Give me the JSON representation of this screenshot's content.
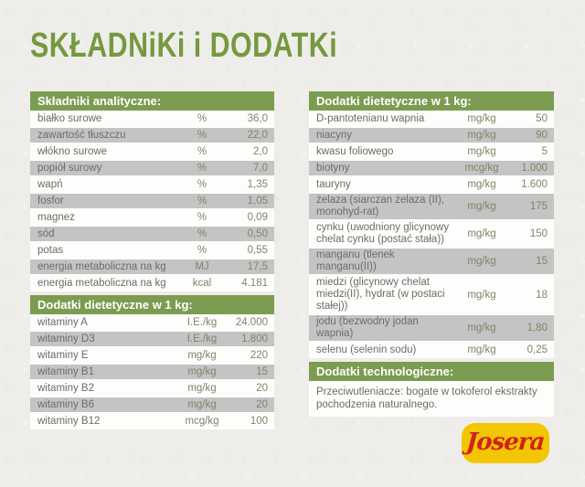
{
  "title": "SKŁADNiKi i DODATKi",
  "colors": {
    "background": "#efedea",
    "title_green": "#75993f",
    "header_green": "#7b9c51",
    "row_alt_gray": "#c4c4c4",
    "text_gray": "#6c6c66",
    "value_green_gray": "#7c8767",
    "logo_yellow": "#f4c503",
    "logo_red": "#d0231c"
  },
  "left_column": {
    "analytical": {
      "header": "Składniki analityczne:",
      "rows": [
        {
          "label": "białko surowe",
          "unit": "%",
          "value": "36,0"
        },
        {
          "label": "zawartość tłuszczu",
          "unit": "%",
          "value": "22,0"
        },
        {
          "label": "włókno surowe",
          "unit": "%",
          "value": "2,0"
        },
        {
          "label": "popiół surowy",
          "unit": "%",
          "value": "7,0"
        },
        {
          "label": "wapń",
          "unit": "%",
          "value": "1,35"
        },
        {
          "label": "fosfor",
          "unit": "%",
          "value": "1,05"
        },
        {
          "label": "magnez",
          "unit": "%",
          "value": "0,09"
        },
        {
          "label": "sód",
          "unit": "%",
          "value": "0,50"
        },
        {
          "label": "potas",
          "unit": "%",
          "value": "0,55"
        },
        {
          "label": "energia metaboliczna na kg",
          "unit": "MJ",
          "value": "17,5"
        },
        {
          "label": "energia metaboliczna na kg",
          "unit": "kcal",
          "value": "4.181"
        }
      ]
    },
    "dietary": {
      "header": "Dodatki dietetyczne w 1 kg:",
      "rows": [
        {
          "label": "witaminy A",
          "unit": "I.E./kg",
          "value": "24.000"
        },
        {
          "label": "witaminy D3",
          "unit": "I.E./kg",
          "value": "1.800"
        },
        {
          "label": "witaminy E",
          "unit": "mg/kg",
          "value": "220"
        },
        {
          "label": "witaminy B1",
          "unit": "mg/kg",
          "value": "15"
        },
        {
          "label": "witaminy B2",
          "unit": "mg/kg",
          "value": "20"
        },
        {
          "label": "witaminy B6",
          "unit": "mg/kg",
          "value": "20"
        },
        {
          "label": "witaminy B12",
          "unit": "mcg/kg",
          "value": "100"
        }
      ]
    }
  },
  "right_column": {
    "dietary": {
      "header": "Dodatki dietetyczne w 1 kg:",
      "rows": [
        {
          "label": "D-pantotenianu wapnia",
          "unit": "mg/kg",
          "value": "50"
        },
        {
          "label": "niacyny",
          "unit": "mg/kg",
          "value": "90"
        },
        {
          "label": "kwasu foliowego",
          "unit": "mg/kg",
          "value": "5"
        },
        {
          "label": "biotyny",
          "unit": "mcg/kg",
          "value": "1.000"
        },
        {
          "label": "tauryny",
          "unit": "mg/kg",
          "value": "1.600"
        },
        {
          "label": "żelaza (siarczan żelaza (II), monohyd-rat)",
          "unit": "mg/kg",
          "value": "175"
        },
        {
          "label": "cynku (uwodniony glicynowy chelat cynku (postać stała))",
          "unit": "mg/kg",
          "value": "150"
        },
        {
          "label": "manganu (tlenek manganu(II))",
          "unit": "mg/kg",
          "value": "15"
        },
        {
          "label": "miedzi (glicynowy chelat miedzi(II), hydrat (w postaci stałej))",
          "unit": "mg/kg",
          "value": "18"
        },
        {
          "label": "jodu (bezwodny jodan wapnia)",
          "unit": "mg/kg",
          "value": "1,80"
        },
        {
          "label": "selenu (selenin sodu)",
          "unit": "mg/kg",
          "value": "0,25"
        }
      ]
    },
    "technological": {
      "header": "Dodatki technologiczne:",
      "text": "Przeciwutleniacze: bogate w tokoferol ekstrakty pochodzenia naturalnego."
    }
  },
  "logo": {
    "text": "Josera"
  }
}
